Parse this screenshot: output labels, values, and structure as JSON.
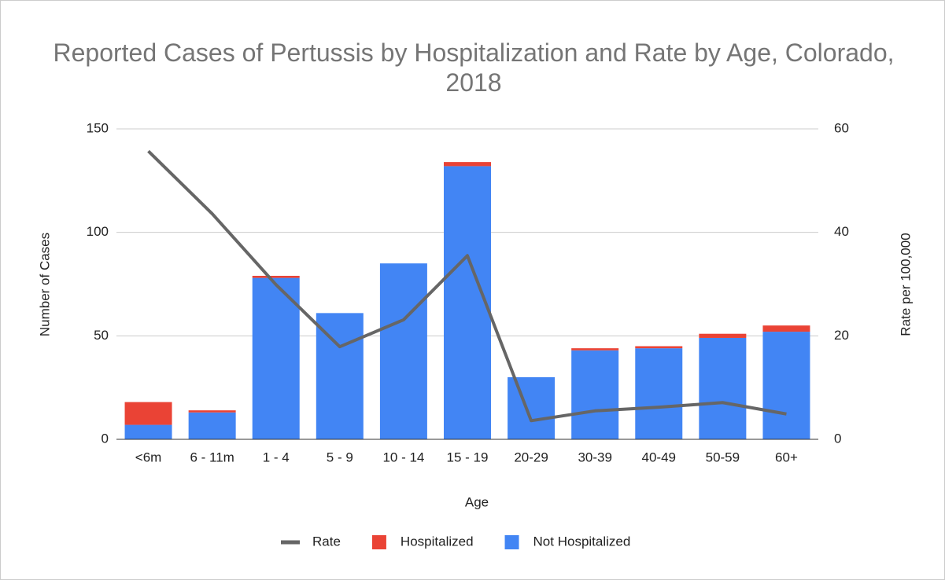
{
  "chart_data": {
    "type": "bar",
    "stacked": true,
    "title": "Reported Cases of Pertussis by Hospitalization and Rate by Age, Colorado, 2018",
    "xlabel": "Age",
    "ylabel": "Number of Cases",
    "y2label": "Rate per 100,000",
    "categories": [
      "<6m",
      "6 - 11m",
      "1 - 4",
      "5 - 9",
      "10 - 14",
      "15 - 19",
      "20-29",
      "30-39",
      "40-49",
      "50-59",
      "60+"
    ],
    "series": [
      {
        "name": "Rate",
        "type": "line",
        "axis": "y2",
        "color": "#666666",
        "values": [
          55.7,
          43.6,
          29.9,
          17.9,
          23.1,
          35.5,
          3.6,
          5.5,
          6.2,
          7.1,
          4.9
        ]
      },
      {
        "name": "Hospitalized",
        "type": "bar",
        "color": "#ea4335",
        "values": [
          11,
          1,
          1,
          0,
          0,
          2,
          0,
          1,
          1,
          2,
          3
        ]
      },
      {
        "name": "Not Hospitalized",
        "type": "bar",
        "color": "#4285f4",
        "values": [
          7,
          13,
          78,
          61,
          85,
          132,
          30,
          43,
          44,
          49,
          52
        ]
      }
    ],
    "ylim": [
      0,
      150
    ],
    "yticks": [
      0,
      50,
      100,
      150
    ],
    "y2lim": [
      0,
      60
    ],
    "y2ticks": [
      0,
      20,
      40,
      60
    ],
    "grid": true,
    "legend": "bottom"
  }
}
